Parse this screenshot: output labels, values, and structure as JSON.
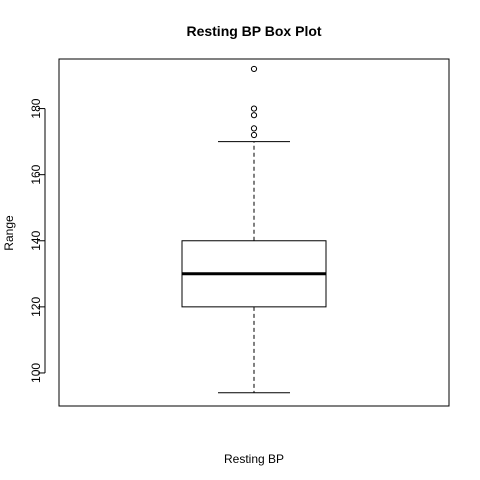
{
  "chart_data": {
    "type": "box",
    "title": "Resting BP Box Plot",
    "xlabel": "Resting BP",
    "ylabel": "Range",
    "ylim": [
      90,
      195
    ],
    "yticks": [
      100,
      120,
      140,
      160,
      180
    ],
    "grid": false,
    "legend": "none",
    "series": [
      {
        "min": 94,
        "q1": 120,
        "median": 130,
        "q3": 140,
        "max": 170,
        "outliers": [
          172,
          174,
          178,
          180,
          192
        ]
      }
    ]
  },
  "colors": {
    "background": "#ffffff",
    "stroke": "#000000"
  }
}
